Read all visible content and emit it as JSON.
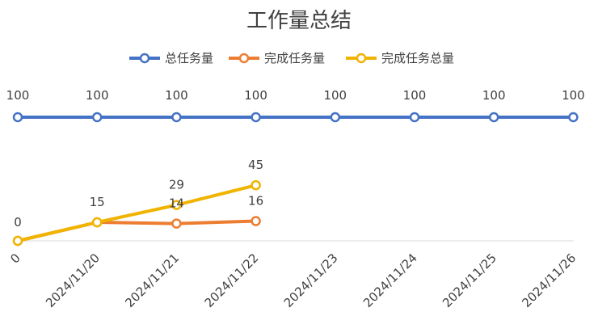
{
  "chart_data": {
    "type": "line",
    "title": "工作量总结",
    "categories": [
      "0",
      "2024/11/20",
      "2024/11/21",
      "2024/11/22",
      "2024/11/23",
      "2024/11/24",
      "2024/11/25",
      "2024/11/26"
    ],
    "series": [
      {
        "name": "总任务量",
        "color": "#4472c4",
        "values": [
          100,
          100,
          100,
          100,
          100,
          100,
          100,
          100
        ]
      },
      {
        "name": "完成任务量",
        "color": "#ed7d31",
        "values": [
          0,
          15,
          14,
          16,
          null,
          null,
          null,
          null
        ]
      },
      {
        "name": "完成任务总量",
        "color": "#f0b400",
        "values": [
          0,
          15,
          29,
          45,
          null,
          null,
          null,
          null
        ]
      }
    ],
    "xlabel": "",
    "ylabel": "",
    "ylim": [
      0,
      100
    ],
    "grid": false,
    "legend": "top"
  }
}
